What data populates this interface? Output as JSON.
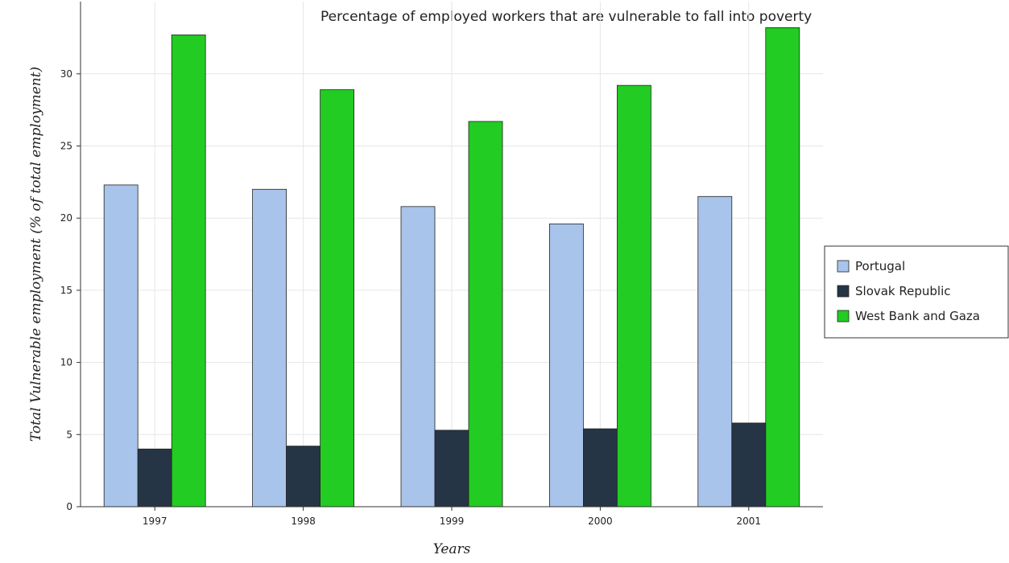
{
  "chart_data": {
    "type": "bar",
    "title": "Percentage of employed workers that are vulnerable to fall into poverty",
    "xlabel": "Years",
    "ylabel": "Total Vulnerable employment (% of total employment)",
    "categories": [
      "1997",
      "1998",
      "1999",
      "2000",
      "2001"
    ],
    "ylim": [
      0,
      35
    ],
    "yticks": [
      0,
      5,
      10,
      15,
      20,
      25,
      30
    ],
    "grid": true,
    "legend_position": "right",
    "series": [
      {
        "name": "Portugal",
        "values": [
          22.3,
          22.0,
          20.8,
          19.6,
          21.5
        ],
        "color": "#a9c4eb"
      },
      {
        "name": "Slovak Republic",
        "values": [
          4.0,
          4.2,
          5.3,
          5.4,
          5.8
        ],
        "color": "#253545"
      },
      {
        "name": "West Bank and Gaza",
        "values": [
          32.7,
          28.9,
          26.7,
          29.2,
          33.2
        ],
        "color": "#22cc22"
      }
    ]
  }
}
